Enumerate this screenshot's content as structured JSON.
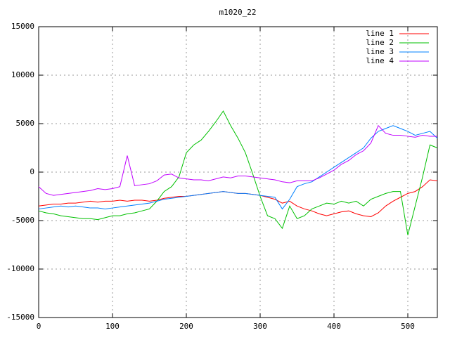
{
  "chart_data": {
    "type": "line",
    "title": "m1020_22",
    "x": [
      0,
      10,
      20,
      30,
      40,
      50,
      60,
      70,
      80,
      90,
      100,
      110,
      120,
      130,
      140,
      150,
      160,
      170,
      180,
      190,
      200,
      210,
      220,
      230,
      240,
      250,
      260,
      270,
      280,
      290,
      300,
      310,
      320,
      330,
      340,
      350,
      360,
      370,
      380,
      390,
      400,
      410,
      420,
      430,
      440,
      450,
      460,
      470,
      480,
      490,
      500,
      510,
      520,
      530,
      540
    ],
    "series": [
      {
        "name": "line 1",
        "color": "#ff0000",
        "values": [
          -3500,
          -3400,
          -3300,
          -3300,
          -3200,
          -3200,
          -3100,
          -3000,
          -3100,
          -3000,
          -3000,
          -2900,
          -3000,
          -2900,
          -2900,
          -3000,
          -2900,
          -2700,
          -2600,
          -2500,
          -2500,
          -2400,
          -2300,
          -2200,
          -2100,
          -2000,
          -2100,
          -2200,
          -2200,
          -2300,
          -2400,
          -2600,
          -2800,
          -3200,
          -3000,
          -3500,
          -3800,
          -4000,
          -4300,
          -4500,
          -4300,
          -4100,
          -4000,
          -4300,
          -4500,
          -4600,
          -4200,
          -3500,
          -3000,
          -2600,
          -2200,
          -2000,
          -1500,
          -800,
          -900
        ]
      },
      {
        "name": "line 2",
        "color": "#00c000",
        "values": [
          -4000,
          -4200,
          -4300,
          -4500,
          -4600,
          -4700,
          -4800,
          -4800,
          -4900,
          -4700,
          -4500,
          -4500,
          -4300,
          -4200,
          -4000,
          -3800,
          -3000,
          -2000,
          -1500,
          -500,
          2000,
          2800,
          3300,
          4200,
          5200,
          6300,
          4800,
          3500,
          2000,
          -200,
          -2500,
          -4500,
          -4800,
          -5800,
          -3500,
          -4800,
          -4500,
          -3800,
          -3500,
          -3200,
          -3300,
          -3000,
          -3200,
          -3000,
          -3500,
          -2800,
          -2500,
          -2200,
          -2000,
          -2000,
          -6500,
          -3500,
          -500,
          2800,
          2500
        ]
      },
      {
        "name": "line 3",
        "color": "#0080ff",
        "values": [
          -3800,
          -3700,
          -3600,
          -3500,
          -3600,
          -3500,
          -3600,
          -3700,
          -3700,
          -3800,
          -3700,
          -3600,
          -3500,
          -3400,
          -3300,
          -3200,
          -3000,
          -2800,
          -2700,
          -2600,
          -2500,
          -2400,
          -2300,
          -2200,
          -2100,
          -2000,
          -2100,
          -2200,
          -2200,
          -2300,
          -2400,
          -2500,
          -2600,
          -3800,
          -2800,
          -1500,
          -1200,
          -1000,
          -500,
          0,
          500,
          1000,
          1500,
          2000,
          2500,
          3500,
          4200,
          4500,
          4800,
          4500,
          4200,
          3800,
          4000,
          4200,
          3500
        ]
      },
      {
        "name": "line 4",
        "color": "#c000ff",
        "values": [
          -1500,
          -2200,
          -2400,
          -2300,
          -2200,
          -2100,
          -2000,
          -1900,
          -1700,
          -1800,
          -1700,
          -1500,
          1700,
          -1400,
          -1300,
          -1200,
          -900,
          -300,
          -200,
          -600,
          -700,
          -800,
          -800,
          -900,
          -700,
          -500,
          -600,
          -400,
          -400,
          -500,
          -600,
          -700,
          -800,
          -1000,
          -1100,
          -900,
          -900,
          -900,
          -600,
          -200,
          200,
          800,
          1200,
          1800,
          2200,
          3000,
          4800,
          4000,
          3800,
          3800,
          3700,
          3600,
          3800,
          3700,
          3700
        ]
      }
    ],
    "xlim": [
      0,
      540
    ],
    "ylim": [
      -15000,
      15000
    ],
    "xticks": [
      0,
      100,
      200,
      300,
      400,
      500
    ],
    "yticks": [
      -15000,
      -10000,
      -5000,
      0,
      5000,
      10000,
      15000
    ],
    "grid": true,
    "legend": "top-right"
  }
}
